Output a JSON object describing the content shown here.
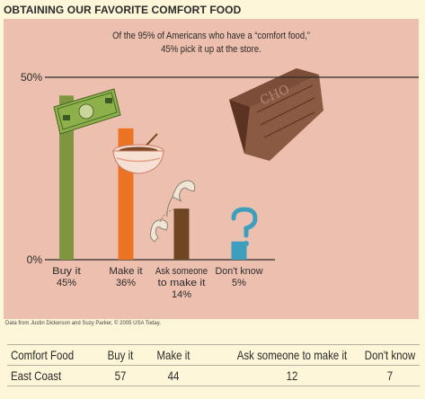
{
  "header": {
    "title": "OBTAINING OUR FAVORITE COMFORT FOOD"
  },
  "chart_data": {
    "type": "bar",
    "title": "Of the 95% of Americans who have a “comfort food,” 45% pick it up at the store.",
    "subtitle_lines": [
      "Of the 95% of Americans who have a “comfort food,”",
      "45% pick it up at the store."
    ],
    "categories": [
      "Buy it",
      "Make it",
      "Ask someone to make it",
      "Don't know"
    ],
    "category_label_lines": [
      [
        "Buy it"
      ],
      [
        "Make it"
      ],
      [
        "Ask someone",
        "to make it"
      ],
      [
        "Don't know"
      ]
    ],
    "values": [
      45,
      36,
      14,
      5
    ],
    "value_labels": [
      "45%",
      "36%",
      "14%",
      "5%"
    ],
    "ylim": [
      0,
      50
    ],
    "yticks": [
      "0%",
      "50%"
    ],
    "xlabel": "",
    "ylabel": "",
    "grid": false,
    "colors": [
      "#7f9641",
      "#eb7424",
      "#6e4621",
      "#3d9fbd"
    ]
  },
  "credit": "Data from Justin Dickerson and Suzy Parker, © 2005 USA Today.",
  "table": {
    "headers": [
      "Comfort Food",
      "Buy it",
      "Make it",
      "Ask someone to make it",
      "Don't know"
    ],
    "rows": [
      [
        "East Coast",
        "57",
        "44",
        "12",
        "7"
      ]
    ]
  },
  "colors": {
    "page_background": "#fdf6d8",
    "panel_background": "#ecbfae",
    "chocolate": "#7a4a36",
    "money": "#8eb04a"
  }
}
